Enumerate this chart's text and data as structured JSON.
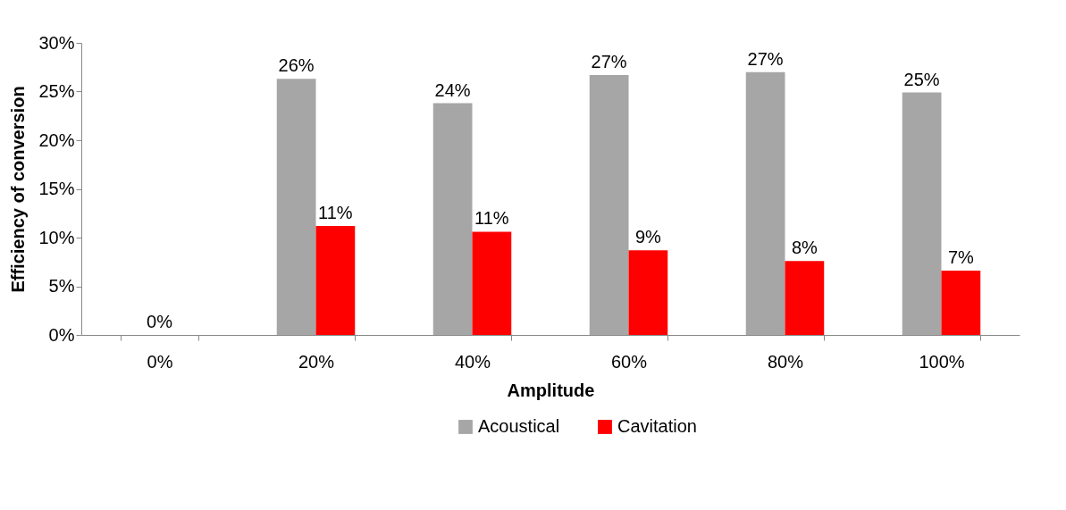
{
  "chart_data": {
    "type": "bar",
    "xlabel": "Amplitude",
    "ylabel": "Efficiency of conversion",
    "categories": [
      "0%",
      "20%",
      "40%",
      "60%",
      "80%",
      "100%"
    ],
    "series": [
      {
        "name": "Acoustical",
        "color": "#a6a6a6",
        "values": [
          0,
          26.3,
          23.8,
          26.7,
          27.0,
          24.9
        ],
        "value_labels": [
          null,
          "26%",
          "24%",
          "27%",
          "27%",
          "25%"
        ]
      },
      {
        "name": "Cavitation",
        "color": "#ff0000",
        "values": [
          null,
          11.2,
          10.6,
          8.7,
          7.6,
          6.6
        ],
        "value_labels": [
          null,
          "11%",
          "11%",
          "9%",
          "8%",
          "7%"
        ]
      }
    ],
    "ylim": [
      0,
      30
    ],
    "yticks": [
      {
        "value": 0,
        "label": "0%"
      },
      {
        "value": 5,
        "label": "5%"
      },
      {
        "value": 10,
        "label": "10%"
      },
      {
        "value": 15,
        "label": "15%"
      },
      {
        "value": 20,
        "label": "20%"
      },
      {
        "value": 25,
        "label": "25%"
      },
      {
        "value": 30,
        "label": "30%"
      }
    ],
    "annotations": [
      {
        "text": "0%",
        "x": "0%",
        "y": 0
      }
    ],
    "legend": "bottom"
  }
}
